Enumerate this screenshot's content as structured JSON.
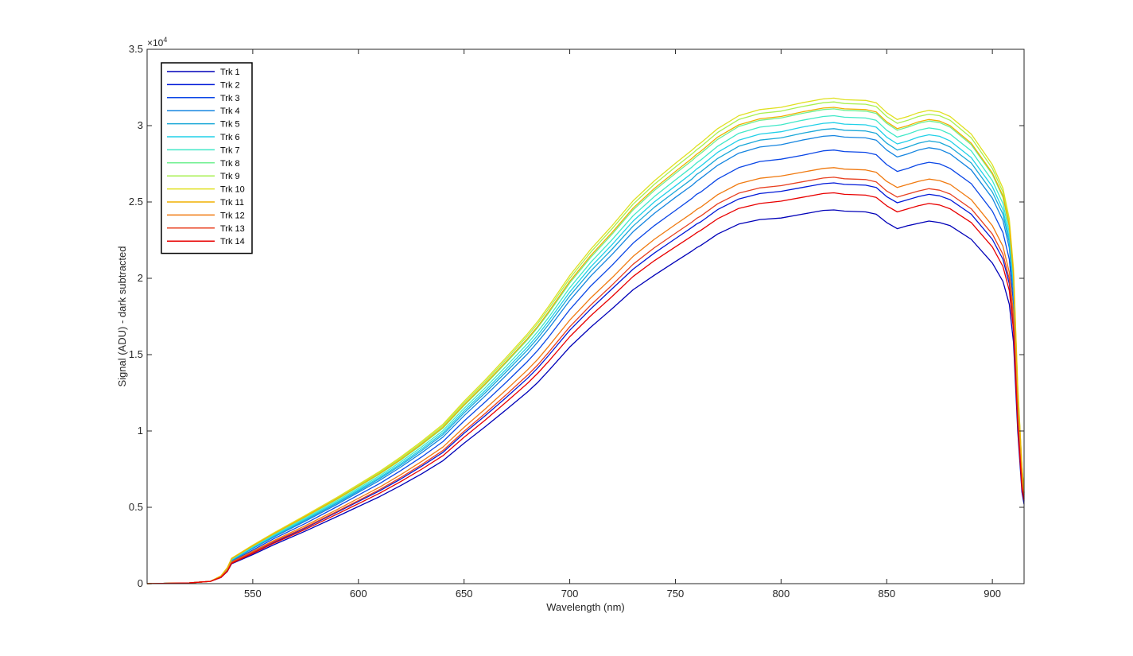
{
  "chart_data": {
    "type": "line",
    "xlabel": "Wavelength (nm)",
    "ylabel": "Signal (ADU) - dark subtracted",
    "xlim": [
      500,
      915
    ],
    "ylim": [
      0,
      35000
    ],
    "xticks": [
      550,
      600,
      650,
      700,
      750,
      800,
      850,
      900
    ],
    "xtick_labels": [
      "550",
      "600",
      "650",
      "700",
      "750",
      "800",
      "850",
      "900"
    ],
    "yticks": [
      0,
      5000,
      10000,
      15000,
      20000,
      25000,
      30000,
      35000
    ],
    "ytick_labels": [
      "0",
      "0.5",
      "1",
      "1.5",
      "2",
      "2.5",
      "3",
      "3.5"
    ],
    "y_exponent_label": "×10",
    "y_exponent_power": "4",
    "grid": false,
    "legend_position": "top-left",
    "x": [
      500,
      520,
      530,
      535,
      538,
      540,
      550,
      560,
      575,
      590,
      600,
      610,
      620,
      630,
      640,
      650,
      660,
      670,
      680,
      685,
      690,
      700,
      710,
      720,
      730,
      740,
      750,
      758,
      760,
      762,
      770,
      780,
      790,
      800,
      810,
      820,
      825,
      830,
      840,
      845,
      850,
      855,
      860,
      865,
      870,
      875,
      880,
      890,
      900,
      905,
      908,
      910,
      912,
      914,
      915
    ],
    "series": [
      {
        "name": "Trk 1",
        "color": "#0000b8",
        "values": [
          0,
          50,
          150,
          400,
          800,
          1300,
          1900,
          2550,
          3450,
          4400,
          5050,
          5700,
          6420,
          7200,
          8050,
          9200,
          10280,
          11400,
          12550,
          13200,
          13950,
          15500,
          16800,
          18000,
          19250,
          20200,
          21100,
          21800,
          22000,
          22150,
          22900,
          23550,
          23850,
          23950,
          24200,
          24450,
          24480,
          24400,
          24350,
          24200,
          23650,
          23250,
          23450,
          23600,
          23750,
          23650,
          23450,
          22550,
          21000,
          19800,
          18300,
          15800,
          10000,
          6000,
          5200
        ]
      },
      {
        "name": "Trk 2",
        "color": "#0018d8",
        "values": [
          0,
          50,
          150,
          420,
          850,
          1350,
          2000,
          2700,
          3650,
          4680,
          5380,
          6080,
          6850,
          7700,
          8600,
          9850,
          11000,
          12200,
          13450,
          14150,
          14950,
          16600,
          18000,
          19300,
          20600,
          21650,
          22600,
          23350,
          23550,
          23700,
          24500,
          25200,
          25550,
          25700,
          25950,
          26200,
          26250,
          26150,
          26100,
          25950,
          25350,
          24950,
          25150,
          25350,
          25500,
          25400,
          25150,
          24200,
          22550,
          21250,
          19650,
          16950,
          10700,
          6400,
          5400
        ]
      },
      {
        "name": "Trk 3",
        "color": "#0a46e6",
        "values": [
          0,
          50,
          150,
          450,
          900,
          1450,
          2200,
          2950,
          3950,
          5050,
          5800,
          6550,
          7400,
          8300,
          9300,
          10650,
          11900,
          13200,
          14550,
          15300,
          16150,
          17950,
          19500,
          20850,
          22300,
          23450,
          24450,
          25250,
          25500,
          25650,
          26500,
          27250,
          27650,
          27800,
          28050,
          28350,
          28400,
          28300,
          28250,
          28100,
          27450,
          27000,
          27200,
          27450,
          27600,
          27500,
          27200,
          26200,
          24400,
          23000,
          21250,
          18350,
          11550,
          6900,
          5600
        ]
      },
      {
        "name": "Trk 4",
        "color": "#1485e0",
        "values": [
          0,
          50,
          150,
          460,
          930,
          1500,
          2300,
          3050,
          4100,
          5200,
          5980,
          6760,
          7630,
          8580,
          9600,
          11000,
          12300,
          13650,
          15050,
          15850,
          16700,
          18550,
          20150,
          21550,
          23050,
          24250,
          25300,
          26100,
          26350,
          26550,
          27400,
          28200,
          28600,
          28750,
          29050,
          29300,
          29350,
          29250,
          29200,
          29050,
          28400,
          27950,
          28150,
          28400,
          28550,
          28450,
          28150,
          27100,
          25250,
          23800,
          22000,
          19000,
          11950,
          7150,
          5700
        ]
      },
      {
        "name": "Trk 5",
        "color": "#1aa8d8",
        "values": [
          0,
          50,
          150,
          470,
          950,
          1530,
          2340,
          3100,
          4170,
          5280,
          6070,
          6870,
          7750,
          8720,
          9760,
          11180,
          12500,
          13880,
          15300,
          16100,
          16980,
          18850,
          20480,
          21900,
          23420,
          24650,
          25700,
          26520,
          26800,
          26980,
          27850,
          28650,
          29050,
          29200,
          29500,
          29750,
          29800,
          29700,
          29650,
          29500,
          28850,
          28400,
          28600,
          28850,
          29000,
          28900,
          28600,
          27550,
          25650,
          24200,
          22350,
          19300,
          12150,
          7250,
          5800
        ]
      },
      {
        "name": "Trk 6",
        "color": "#20d0e8",
        "values": [
          0,
          50,
          150,
          480,
          980,
          1560,
          2380,
          3150,
          4230,
          5350,
          6150,
          6960,
          7850,
          8830,
          9880,
          11320,
          12650,
          14050,
          15500,
          16300,
          17200,
          19100,
          20750,
          22200,
          23750,
          25000,
          26050,
          26900,
          27150,
          27350,
          28250,
          29050,
          29450,
          29600,
          29900,
          30150,
          30200,
          30100,
          30050,
          29900,
          29250,
          28800,
          29000,
          29250,
          29400,
          29300,
          29000,
          27900,
          26000,
          24500,
          22650,
          19550,
          12300,
          7350,
          5850
        ]
      },
      {
        "name": "Trk 7",
        "color": "#40e8c8",
        "values": [
          0,
          50,
          150,
          490,
          1000,
          1590,
          2420,
          3200,
          4300,
          5430,
          6240,
          7060,
          7970,
          8960,
          10020,
          11480,
          12830,
          14250,
          15720,
          16530,
          17440,
          19380,
          21050,
          22520,
          24100,
          25350,
          26450,
          27300,
          27550,
          27750,
          28650,
          29500,
          29900,
          30050,
          30350,
          30600,
          30650,
          30550,
          30500,
          30350,
          29700,
          29250,
          29450,
          29700,
          29850,
          29750,
          29450,
          28350,
          26400,
          24900,
          23000,
          19850,
          12500,
          7450,
          5900
        ]
      },
      {
        "name": "Trk 8",
        "color": "#70f090",
        "values": [
          0,
          50,
          150,
          500,
          1020,
          1620,
          2460,
          3250,
          4370,
          5520,
          6340,
          7170,
          8090,
          9100,
          10180,
          11660,
          13030,
          14480,
          15970,
          16800,
          17720,
          19690,
          21380,
          22880,
          24480,
          25750,
          26870,
          27730,
          27980,
          28180,
          29100,
          29950,
          30350,
          30500,
          30800,
          31050,
          31100,
          31000,
          30950,
          30800,
          30150,
          29700,
          29900,
          30150,
          30300,
          30200,
          29900,
          28750,
          26800,
          25300,
          23350,
          20150,
          12700,
          7550,
          5950
        ]
      },
      {
        "name": "Trk 9",
        "color": "#a8f050",
        "values": [
          0,
          50,
          150,
          510,
          1040,
          1650,
          2500,
          3300,
          4440,
          5610,
          6440,
          7280,
          8210,
          9240,
          10340,
          11840,
          13230,
          14700,
          16220,
          17060,
          18000,
          20000,
          21720,
          23240,
          24860,
          26150,
          27290,
          28160,
          28410,
          28620,
          29550,
          30400,
          30800,
          30950,
          31250,
          31500,
          31550,
          31450,
          31400,
          31250,
          30600,
          30150,
          30350,
          30600,
          30750,
          30650,
          30350,
          29200,
          27200,
          25650,
          23700,
          20450,
          12900,
          7650,
          6000
        ]
      },
      {
        "name": "Trk 10",
        "color": "#e0e020",
        "values": [
          0,
          50,
          150,
          515,
          1050,
          1665,
          2520,
          3330,
          4480,
          5660,
          6500,
          7350,
          8290,
          9330,
          10440,
          11950,
          13350,
          14830,
          16360,
          17210,
          18160,
          20180,
          21910,
          23440,
          25080,
          26380,
          27530,
          28410,
          28660,
          28870,
          29800,
          30650,
          31050,
          31200,
          31500,
          31750,
          31800,
          31700,
          31650,
          31500,
          30850,
          30400,
          30600,
          30850,
          31000,
          30900,
          30600,
          29450,
          27450,
          25900,
          23900,
          20650,
          13000,
          7700,
          6050
        ]
      },
      {
        "name": "Trk 11",
        "color": "#f0b000",
        "values": [
          0,
          50,
          150,
          505,
          1030,
          1635,
          2480,
          3270,
          4400,
          5560,
          6380,
          7210,
          8130,
          9150,
          10240,
          11720,
          13100,
          14550,
          16050,
          16880,
          17810,
          19800,
          21500,
          23000,
          24600,
          25880,
          27000,
          27870,
          28120,
          28320,
          29250,
          30050,
          30450,
          30600,
          30900,
          31150,
          31200,
          31100,
          31050,
          30900,
          30250,
          29800,
          30000,
          30250,
          30400,
          30300,
          30000,
          28850,
          26900,
          25400,
          23450,
          20250,
          12750,
          7600,
          5950
        ]
      },
      {
        "name": "Trk 12",
        "color": "#f07a10",
        "values": [
          0,
          50,
          150,
          440,
          880,
          1420,
          2120,
          2830,
          3800,
          4860,
          5590,
          6320,
          7130,
          8010,
          8950,
          10240,
          11450,
          12700,
          14000,
          14720,
          15540,
          17260,
          18720,
          20030,
          21440,
          22550,
          23520,
          24280,
          24500,
          24660,
          25480,
          26200,
          26550,
          26700,
          26950,
          27200,
          27250,
          27150,
          27100,
          26950,
          26350,
          25950,
          26150,
          26350,
          26500,
          26400,
          26150,
          25150,
          23450,
          22100,
          20400,
          17650,
          11100,
          6650,
          5550
        ]
      },
      {
        "name": "Trk 13",
        "color": "#e84020",
        "values": [
          0,
          50,
          150,
          430,
          860,
          1385,
          2060,
          2760,
          3700,
          4740,
          5450,
          6160,
          6950,
          7800,
          8720,
          9980,
          11150,
          12380,
          13650,
          14350,
          15150,
          16830,
          18250,
          19550,
          20920,
          22000,
          22950,
          23700,
          23920,
          24080,
          24880,
          25580,
          25920,
          26070,
          26320,
          26570,
          26620,
          26520,
          26470,
          26320,
          25720,
          25320,
          25520,
          25720,
          25870,
          25770,
          25520,
          24550,
          22900,
          21580,
          19950,
          17250,
          10850,
          6500,
          5500
        ]
      },
      {
        "name": "Trk 14",
        "color": "#e80000",
        "values": [
          0,
          50,
          150,
          410,
          820,
          1330,
          1980,
          2650,
          3560,
          4560,
          5240,
          5920,
          6680,
          7500,
          8380,
          9590,
          10720,
          11900,
          13120,
          13800,
          14560,
          16170,
          17550,
          18800,
          20120,
          21150,
          22060,
          22780,
          22980,
          23140,
          23900,
          24580,
          24900,
          25050,
          25300,
          25550,
          25600,
          25500,
          25450,
          25300,
          24750,
          24350,
          24550,
          24750,
          24900,
          24800,
          24550,
          23650,
          22050,
          20780,
          19200,
          16600,
          10450,
          6250,
          5450
        ]
      }
    ]
  }
}
